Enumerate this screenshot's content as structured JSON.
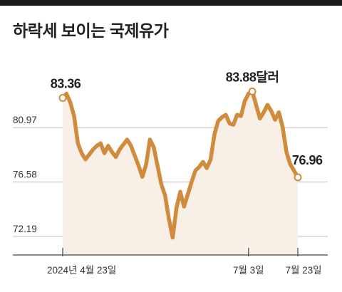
{
  "title": "하락세 보이는 국제유가",
  "colors": {
    "line": "#d08b3c",
    "fill": "#f8efe6",
    "grid": "#bdbdbd",
    "marker_fill": "#ffffff"
  },
  "chart_data": {
    "type": "line",
    "title": "하락세 보이는 국제유가",
    "xlabel": "",
    "ylabel": "",
    "ylim": [
      70.7,
      86.2
    ],
    "yticks": [
      72.19,
      76.58,
      80.97
    ],
    "xtick_labels": [
      {
        "index": 0,
        "label": "2024년 4월 23일"
      },
      {
        "index": 49,
        "label": "7월 3일"
      },
      {
        "index": 62,
        "label": "7월 23일"
      }
    ],
    "grid": true,
    "series": [
      {
        "values": [
          83.36,
          83.7,
          83.0,
          81.9,
          79.7,
          78.9,
          78.4,
          78.8,
          79.2,
          79.5,
          79.7,
          78.9,
          79.5,
          79.0,
          78.6,
          79.2,
          79.6,
          80.0,
          79.5,
          78.7,
          77.9,
          77.0,
          78.0,
          80.0,
          79.4,
          77.9,
          76.4,
          75.5,
          73.6,
          72.1,
          74.5,
          75.8,
          74.6,
          75.6,
          76.6,
          77.5,
          77.8,
          78.2,
          77.7,
          78.4,
          80.4,
          81.5,
          81.8,
          82.0,
          81.3,
          81.2,
          82.0,
          81.9,
          83.1,
          83.7,
          83.88,
          82.8,
          81.7,
          82.2,
          82.8,
          82.3,
          81.6,
          82.2,
          81.0,
          79.0,
          78.0,
          77.5,
          76.96
        ],
        "labels": [
          {
            "index": 0,
            "text": "83.36"
          },
          {
            "index": 50,
            "text": "83.88달러"
          },
          {
            "index": 62,
            "text": "76.96"
          }
        ]
      }
    ]
  }
}
